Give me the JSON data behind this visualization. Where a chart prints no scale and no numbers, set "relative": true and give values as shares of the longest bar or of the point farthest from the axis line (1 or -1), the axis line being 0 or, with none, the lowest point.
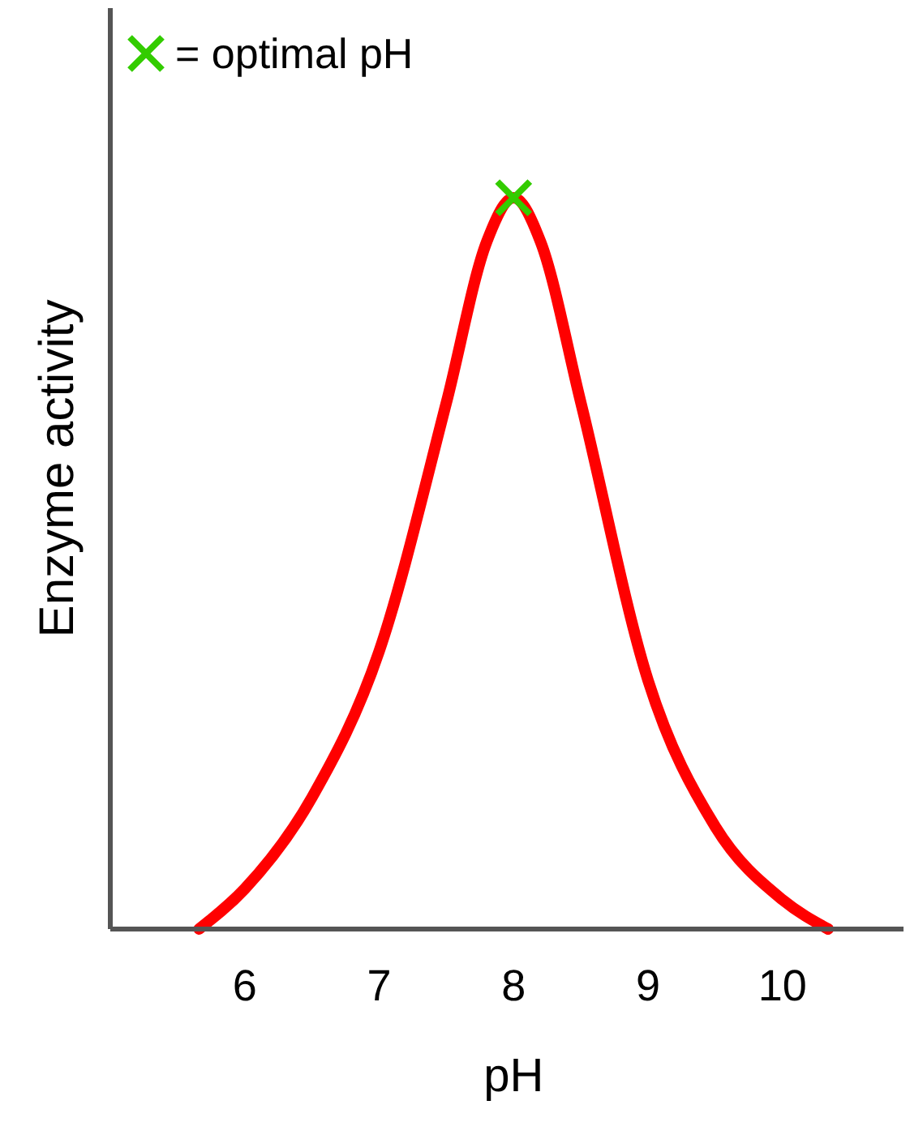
{
  "chart_data": {
    "type": "line",
    "xlabel": "pH",
    "ylabel": "Enzyme activity",
    "relative": true,
    "xlim": [
      5,
      10.9
    ],
    "xticks": [
      6,
      7,
      8,
      9,
      10
    ],
    "legend": "top left",
    "grid": false,
    "series": [
      {
        "color": "#ff0000",
        "line_style": "solid",
        "marker": "none",
        "x": [
          5.66,
          6,
          6.5,
          7,
          7.5,
          7.8,
          8,
          8.2,
          8.5,
          9,
          9.5,
          10,
          10.34
        ],
        "values": [
          0,
          0.055,
          0.18,
          0.38,
          0.72,
          0.94,
          1,
          0.94,
          0.72,
          0.34,
          0.14,
          0.04,
          0
        ]
      },
      {
        "type": "scatter",
        "name": "= optimal pH",
        "color": "#33cc00",
        "marker": "cross",
        "x": [
          8
        ],
        "values": [
          1
        ]
      }
    ]
  }
}
